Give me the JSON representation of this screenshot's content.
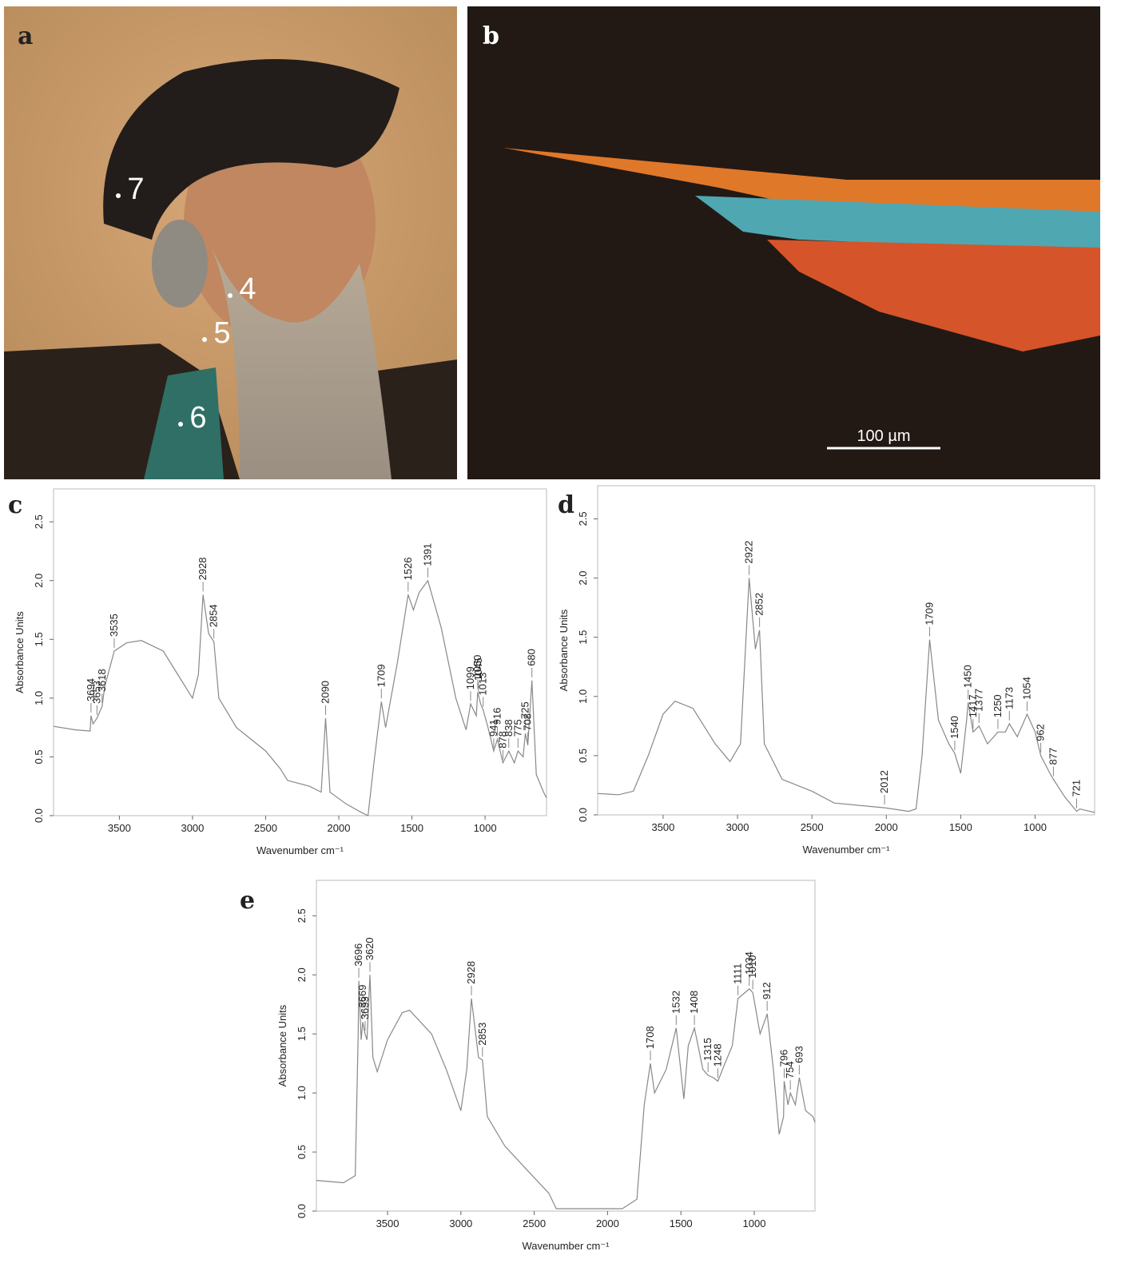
{
  "panels": {
    "a": {
      "label": "a",
      "points": [
        "7",
        "4",
        "5",
        "6"
      ]
    },
    "b": {
      "label": "b",
      "scale_bar": "100 µm"
    }
  },
  "chart_data": [
    {
      "type": "line",
      "label": "c",
      "xlabel": "Wavenumber cm⁻¹",
      "ylabel": "Absorbance Units",
      "xlim": [
        3950,
        580
      ],
      "ylim": [
        0,
        2.78
      ],
      "xticks": [
        3500,
        3000,
        2500,
        2000,
        1500,
        1000
      ],
      "yticks": [
        {
          "value": 0,
          "label": "0.0"
        },
        0.5,
        {
          "value": 1,
          "label": "1.0"
        },
        1.5,
        {
          "value": 2,
          "label": "2.0"
        },
        2.5
      ],
      "x": [
        3950,
        3800,
        3700,
        3694,
        3680,
        3653,
        3618,
        3600,
        3535,
        3450,
        3350,
        3200,
        3100,
        3000,
        2960,
        2928,
        2890,
        2854,
        2820,
        2700,
        2500,
        2400,
        2350,
        2200,
        2120,
        2090,
        2060,
        1950,
        1850,
        1800,
        1760,
        1709,
        1680,
        1600,
        1526,
        1490,
        1450,
        1391,
        1300,
        1200,
        1130,
        1099,
        1060,
        1050,
        1030,
        1013,
        980,
        941,
        916,
        878,
        838,
        800,
        775,
        740,
        725,
        708,
        680,
        650,
        600,
        580
      ],
      "series": [
        {
          "color": "#888888",
          "values": [
            0.76,
            0.73,
            0.72,
            0.85,
            0.78,
            0.83,
            0.93,
            1.1,
            1.4,
            1.47,
            1.49,
            1.4,
            1.2,
            1.0,
            1.2,
            1.88,
            1.55,
            1.48,
            1.0,
            0.75,
            0.55,
            0.4,
            0.3,
            0.25,
            0.2,
            0.83,
            0.2,
            0.1,
            0.03,
            0.0,
            0.45,
            0.97,
            0.75,
            1.3,
            1.88,
            1.75,
            1.9,
            2.0,
            1.6,
            1.0,
            0.73,
            0.95,
            0.85,
            1.05,
            0.95,
            0.9,
            0.75,
            0.55,
            0.65,
            0.45,
            0.55,
            0.45,
            0.55,
            0.5,
            0.7,
            0.6,
            1.15,
            0.35,
            0.2,
            0.15
          ]
        }
      ],
      "peaks": [
        3694,
        3653,
        3618,
        3535,
        2928,
        2854,
        2090,
        1709,
        1526,
        1391,
        1099,
        1050,
        1045,
        1013,
        941,
        916,
        878,
        838,
        775,
        725,
        708,
        680
      ]
    },
    {
      "type": "line",
      "label": "d",
      "xlabel": "Wavenumber cm⁻¹",
      "ylabel": "Absorbance Units",
      "xlim": [
        3940,
        600
      ],
      "ylim": [
        0,
        2.78
      ],
      "xticks": [
        3500,
        3000,
        2500,
        2000,
        1500,
        1000
      ],
      "yticks": [
        {
          "value": 0,
          "label": "0.0"
        },
        0.5,
        {
          "value": 1,
          "label": "1.0"
        },
        1.5,
        {
          "value": 2,
          "label": "2.0"
        },
        2.5
      ],
      "x": [
        3940,
        3800,
        3700,
        3600,
        3500,
        3420,
        3300,
        3150,
        3050,
        2980,
        2922,
        2880,
        2852,
        2820,
        2700,
        2500,
        2350,
        2100,
        2012,
        1850,
        1800,
        1760,
        1709,
        1650,
        1580,
        1540,
        1500,
        1460,
        1450,
        1417,
        1377,
        1320,
        1250,
        1200,
        1173,
        1120,
        1054,
        1000,
        962,
        900,
        877,
        800,
        721,
        700,
        600
      ],
      "series": [
        {
          "color": "#888888",
          "values": [
            0.18,
            0.17,
            0.2,
            0.5,
            0.85,
            0.96,
            0.9,
            0.6,
            0.45,
            0.6,
            2.0,
            1.4,
            1.56,
            0.6,
            0.3,
            0.2,
            0.1,
            0.07,
            0.06,
            0.03,
            0.05,
            0.5,
            1.48,
            0.8,
            0.6,
            0.52,
            0.35,
            0.8,
            0.95,
            0.7,
            0.75,
            0.6,
            0.7,
            0.7,
            0.77,
            0.66,
            0.85,
            0.7,
            0.5,
            0.35,
            0.3,
            0.15,
            0.03,
            0.05,
            0.02
          ]
        }
      ],
      "peaks": [
        2922,
        2852,
        2012,
        1709,
        1540,
        1450,
        1417,
        1377,
        1250,
        1173,
        1054,
        962,
        877,
        721
      ]
    },
    {
      "type": "line",
      "label": "e",
      "xlabel": "Wavenumber cm⁻¹",
      "ylabel": "Absorbance Units",
      "xlim": [
        3985,
        586
      ],
      "ylim": [
        0,
        2.8
      ],
      "xticks": [
        3500,
        3000,
        2500,
        2000,
        1500,
        1000
      ],
      "yticks": [
        {
          "value": 0,
          "label": "0.0"
        },
        0.5,
        {
          "value": 1,
          "label": "1.0"
        },
        1.5,
        {
          "value": 2,
          "label": "2.0"
        },
        2.5
      ],
      "x": [
        3985,
        3800,
        3720,
        3700,
        3696,
        3680,
        3669,
        3653,
        3640,
        3620,
        3600,
        3570,
        3500,
        3400,
        3350,
        3200,
        3100,
        3000,
        2960,
        2928,
        2880,
        2853,
        2820,
        2700,
        2550,
        2400,
        2350,
        2100,
        1900,
        1800,
        1750,
        1708,
        1680,
        1600,
        1532,
        1480,
        1450,
        1408,
        1350,
        1315,
        1280,
        1248,
        1200,
        1150,
        1111,
        1034,
        1010,
        960,
        912,
        870,
        830,
        800,
        796,
        770,
        754,
        720,
        693,
        650,
        600,
        586
      ],
      "series": [
        {
          "color": "#888888",
          "values": [
            0.26,
            0.24,
            0.3,
            1.5,
            1.95,
            1.45,
            1.6,
            1.5,
            1.45,
            2.0,
            1.3,
            1.18,
            1.45,
            1.68,
            1.7,
            1.5,
            1.2,
            0.85,
            1.2,
            1.8,
            1.3,
            1.28,
            0.8,
            0.55,
            0.35,
            0.15,
            0.02,
            0.02,
            0.02,
            0.1,
            0.9,
            1.25,
            1.0,
            1.2,
            1.55,
            0.95,
            1.4,
            1.55,
            1.2,
            1.15,
            1.13,
            1.1,
            1.25,
            1.4,
            1.8,
            1.88,
            1.85,
            1.5,
            1.67,
            1.2,
            0.65,
            0.8,
            1.1,
            0.9,
            1.0,
            0.9,
            1.13,
            0.85,
            0.8,
            0.75
          ]
        }
      ],
      "peaks": [
        3696,
        3669,
        3653,
        3620,
        2928,
        2853,
        1708,
        1532,
        1408,
        1315,
        1248,
        1111,
        1034,
        1010,
        912,
        796,
        754,
        693
      ]
    }
  ]
}
